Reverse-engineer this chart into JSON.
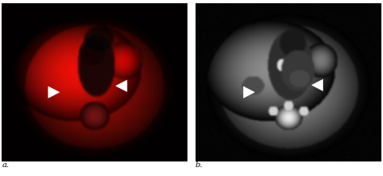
{
  "figure_width": 4.74,
  "figure_height": 2.18,
  "dpi": 100,
  "background_color": "#ffffff",
  "panel_a_label": "a.",
  "panel_b_label": "b.",
  "label_fontsize": 7,
  "label_color": "#000000"
}
